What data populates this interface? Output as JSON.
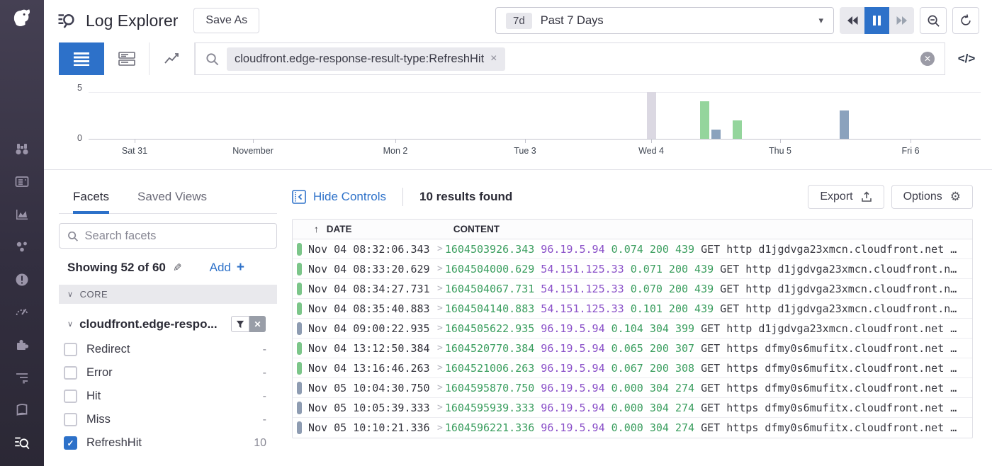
{
  "colors": {
    "accent_blue": "#2d71c9",
    "green_text": "#3b9e5f",
    "purple_text": "#8a50c8",
    "bar_green": "#94d59c",
    "bar_blue": "#8ba2bd",
    "bar_muted": "#dbd8e2",
    "pill_green": "#7cc68a",
    "pill_gray": "#8e9cb2"
  },
  "sidebar": {
    "icons": [
      "datadog-logo",
      "watchdog",
      "dashboards",
      "metrics",
      "infrastructure",
      "monitors",
      "apm",
      "integrations",
      "pipelines",
      "notebooks",
      "log-explorer"
    ]
  },
  "header": {
    "title": "Log Explorer",
    "save_as": "Save As",
    "time_badge": "7d",
    "time_label": "Past 7 Days"
  },
  "search": {
    "chip": "cloudfront.edge-response-result-type:RefreshHit",
    "code_icon": "</>"
  },
  "chart_data": {
    "type": "bar",
    "title": "Log volume timeline",
    "ylim": [
      0,
      5
    ],
    "y_ticks": [
      "5",
      "0"
    ],
    "x_ticks": [
      {
        "label": "Sat 31",
        "pos": 0.0516
      },
      {
        "label": "November",
        "pos": 0.1843
      },
      {
        "label": "Mon 2",
        "pos": 0.3439
      },
      {
        "label": "Tue 3",
        "pos": 0.4893
      },
      {
        "label": "Wed 4",
        "pos": 0.6307
      },
      {
        "label": "Thu 5",
        "pos": 0.7752
      },
      {
        "label": "Fri 6",
        "pos": 0.9214
      }
    ],
    "bars": [
      {
        "pos": 0.6259,
        "value": 5,
        "series": "muted"
      },
      {
        "pos": 0.6855,
        "value": 4,
        "series": "ok"
      },
      {
        "pos": 0.6982,
        "value": 1,
        "series": "info"
      },
      {
        "pos": 0.722,
        "value": 2,
        "series": "ok"
      },
      {
        "pos": 0.842,
        "value": 3,
        "series": "info"
      }
    ]
  },
  "facets": {
    "tabs": [
      {
        "label": "Facets",
        "active": true
      },
      {
        "label": "Saved Views",
        "active": false
      }
    ],
    "search_placeholder": "Search facets",
    "showing": "Showing 52 of 60",
    "add_label": "Add",
    "section": "CORE",
    "group": {
      "title": "cloudfront.edge-respo...",
      "options": [
        {
          "label": "Redirect",
          "count": "-",
          "checked": false
        },
        {
          "label": "Error",
          "count": "-",
          "checked": false
        },
        {
          "label": "Hit",
          "count": "-",
          "checked": false
        },
        {
          "label": "Miss",
          "count": "-",
          "checked": false
        },
        {
          "label": "RefreshHit",
          "count": "10",
          "checked": true
        }
      ]
    }
  },
  "results": {
    "hide_controls": "Hide Controls",
    "count": "10 results found",
    "export_label": "Export",
    "options_label": "Options",
    "columns": {
      "date": "DATE",
      "content": "CONTENT"
    },
    "rows": [
      {
        "status": "ok",
        "date": "Nov 04 08:32:06.343",
        "ts": "1604503926.343",
        "ip": "96.19.5.94",
        "duration": "0.074",
        "code": "200",
        "bytes": "439",
        "method": "GET",
        "scheme": "http",
        "host": "d1jgdvga23xmcn.cloudfront.net",
        "trail": " …"
      },
      {
        "status": "ok",
        "date": "Nov 04 08:33:20.629",
        "ts": "1604504000.629",
        "ip": "54.151.125.33",
        "duration": "0.071",
        "code": "200",
        "bytes": "439",
        "method": "GET",
        "scheme": "http",
        "host": "d1jgdvga23xmcn.cloudfront.n",
        "trail": "…"
      },
      {
        "status": "ok",
        "date": "Nov 04 08:34:27.731",
        "ts": "1604504067.731",
        "ip": "54.151.125.33",
        "duration": "0.070",
        "code": "200",
        "bytes": "439",
        "method": "GET",
        "scheme": "http",
        "host": "d1jgdvga23xmcn.cloudfront.n",
        "trail": "…"
      },
      {
        "status": "ok",
        "date": "Nov 04 08:35:40.883",
        "ts": "1604504140.883",
        "ip": "54.151.125.33",
        "duration": "0.101",
        "code": "200",
        "bytes": "439",
        "method": "GET",
        "scheme": "http",
        "host": "d1jgdvga23xmcn.cloudfront.n",
        "trail": "…"
      },
      {
        "status": "info",
        "date": "Nov 04 09:00:22.935",
        "ts": "1604505622.935",
        "ip": "96.19.5.94",
        "duration": "0.104",
        "code": "304",
        "bytes": "399",
        "method": "GET",
        "scheme": "http",
        "host": "d1jgdvga23xmcn.cloudfront.net",
        "trail": " …"
      },
      {
        "status": "ok",
        "date": "Nov 04 13:12:50.384",
        "ts": "1604520770.384",
        "ip": "96.19.5.94",
        "duration": "0.065",
        "code": "200",
        "bytes": "307",
        "method": "GET",
        "scheme": "https",
        "host": "dfmy0s6mufitx.cloudfront.net",
        "trail": " …"
      },
      {
        "status": "ok",
        "date": "Nov 04 13:16:46.263",
        "ts": "1604521006.263",
        "ip": "96.19.5.94",
        "duration": "0.067",
        "code": "200",
        "bytes": "308",
        "method": "GET",
        "scheme": "https",
        "host": "dfmy0s6mufitx.cloudfront.net",
        "trail": " …"
      },
      {
        "status": "info",
        "date": "Nov 05 10:04:30.750",
        "ts": "1604595870.750",
        "ip": "96.19.5.94",
        "duration": "0.000",
        "code": "304",
        "bytes": "274",
        "method": "GET",
        "scheme": "https",
        "host": "dfmy0s6mufitx.cloudfront.net",
        "trail": " …"
      },
      {
        "status": "info",
        "date": "Nov 05 10:05:39.333",
        "ts": "1604595939.333",
        "ip": "96.19.5.94",
        "duration": "0.000",
        "code": "304",
        "bytes": "274",
        "method": "GET",
        "scheme": "https",
        "host": "dfmy0s6mufitx.cloudfront.net",
        "trail": " …"
      },
      {
        "status": "info",
        "date": "Nov 05 10:10:21.336",
        "ts": "1604596221.336",
        "ip": "96.19.5.94",
        "duration": "0.000",
        "code": "304",
        "bytes": "274",
        "method": "GET",
        "scheme": "https",
        "host": "dfmy0s6mufitx.cloudfront.net",
        "trail": " …"
      }
    ]
  }
}
